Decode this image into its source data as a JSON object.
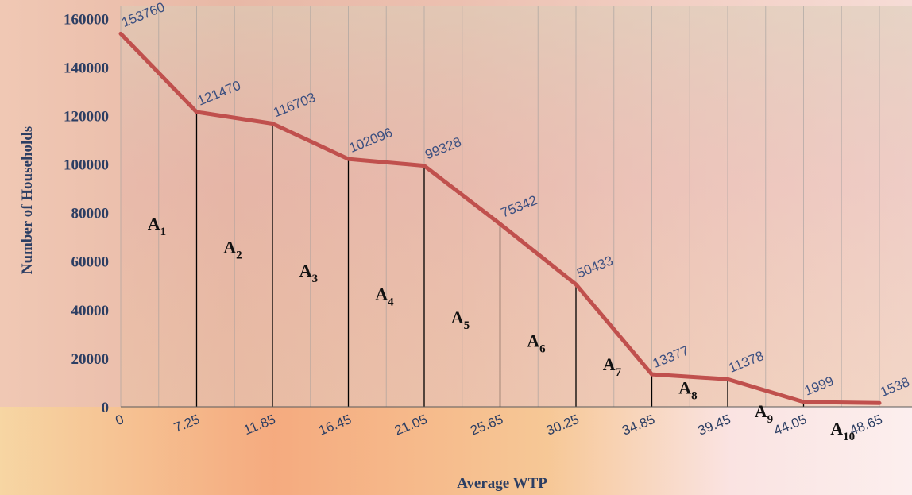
{
  "chart_data": {
    "type": "line",
    "title": "",
    "xlabel": "Average WTP",
    "ylabel": "Number of Households",
    "x": [
      "0",
      "7.25",
      "11.85",
      "16.45",
      "21.05",
      "25.65",
      "30.25",
      "34.85",
      "39.45",
      "44.05",
      "48.65"
    ],
    "series": [
      {
        "values": [
          153760,
          121470,
          116703,
          102096,
          99328,
          75342,
          50433,
          13377,
          11378,
          1999,
          1538
        ]
      }
    ],
    "data_labels": [
      "153760",
      "121470",
      "116703",
      "102096",
      "99328",
      "75342",
      "50433",
      "13377",
      "11378",
      "1999",
      "1538"
    ],
    "yticks": [
      "0",
      "20000",
      "40000",
      "60000",
      "80000",
      "100000",
      "120000",
      "140000",
      "160000"
    ],
    "ylim": [
      0,
      165000
    ],
    "grid": true,
    "annotations": [
      {
        "base": "A",
        "sub": "1"
      },
      {
        "base": "A",
        "sub": "2"
      },
      {
        "base": "A",
        "sub": "3"
      },
      {
        "base": "A",
        "sub": "4"
      },
      {
        "base": "A",
        "sub": "5"
      },
      {
        "base": "A",
        "sub": "6"
      },
      {
        "base": "A",
        "sub": "7"
      },
      {
        "base": "A",
        "sub": "8"
      },
      {
        "base": "A",
        "sub": "9"
      },
      {
        "base": "A",
        "sub": "10"
      }
    ],
    "colors": {
      "line": "#c0504d",
      "text": "#2c3e63",
      "grid": "#9a9a9a",
      "divider": "#000000"
    }
  }
}
